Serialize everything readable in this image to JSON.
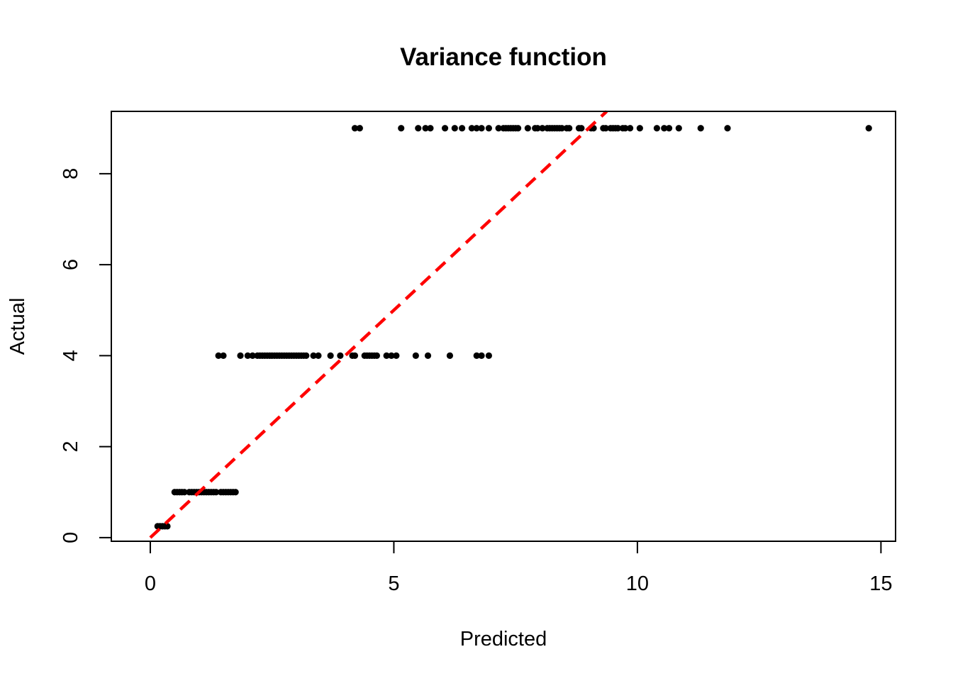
{
  "chart_data": {
    "type": "scatter",
    "title": "Variance function",
    "xlabel": "Predicted",
    "ylabel": "Actual",
    "xlim": [
      -0.8,
      15.3
    ],
    "ylim": [
      -0.08,
      9.37
    ],
    "xticks": [
      0,
      5,
      10,
      15
    ],
    "yticks": [
      0,
      2,
      4,
      6,
      8
    ],
    "grid": false,
    "legend": "none",
    "point_color": "#000000",
    "reference_line": {
      "slope": 1,
      "intercept": 0,
      "color": "#ff0000",
      "style": "dashed",
      "x_from": 0
    },
    "points": [
      {
        "y": 0.25,
        "x": [
          0.15,
          0.2,
          0.25,
          0.3,
          0.35
        ]
      },
      {
        "y": 1,
        "x": [
          0.5,
          0.55,
          0.6,
          0.65,
          0.7,
          0.8,
          0.85,
          0.9,
          0.95,
          1.0,
          1.05,
          1.1,
          1.15,
          1.2,
          1.25,
          1.3,
          1.35,
          1.45,
          1.5,
          1.55,
          1.6,
          1.65,
          1.7,
          1.75
        ]
      },
      {
        "y": 4,
        "x": [
          1.4,
          1.5,
          1.85,
          2.0,
          2.1,
          2.2,
          2.25,
          2.3,
          2.35,
          2.4,
          2.45,
          2.5,
          2.55,
          2.6,
          2.65,
          2.7,
          2.75,
          2.8,
          2.85,
          2.9,
          2.95,
          3.0,
          3.05,
          3.1,
          3.15,
          3.2,
          3.35,
          3.45,
          3.7,
          3.9,
          4.15,
          4.2,
          4.4,
          4.45,
          4.5,
          4.55,
          4.6,
          4.65,
          4.85,
          4.95,
          5.05,
          5.45,
          5.7,
          6.15,
          6.7,
          6.8,
          6.95
        ]
      },
      {
        "y": 9,
        "x": [
          4.2,
          4.3,
          5.15,
          5.5,
          5.65,
          5.75,
          6.05,
          6.25,
          6.4,
          6.6,
          6.7,
          6.8,
          6.95,
          7.15,
          7.25,
          7.3,
          7.35,
          7.4,
          7.45,
          7.5,
          7.55,
          7.75,
          7.9,
          7.95,
          8.05,
          8.15,
          8.2,
          8.25,
          8.3,
          8.35,
          8.4,
          8.45,
          8.55,
          8.6,
          8.8,
          8.85,
          9.05,
          9.1,
          9.3,
          9.35,
          9.45,
          9.5,
          9.55,
          9.6,
          9.7,
          9.75,
          9.85,
          10.05,
          10.4,
          10.55,
          10.65,
          10.85,
          11.3,
          11.85,
          14.75
        ]
      }
    ]
  }
}
